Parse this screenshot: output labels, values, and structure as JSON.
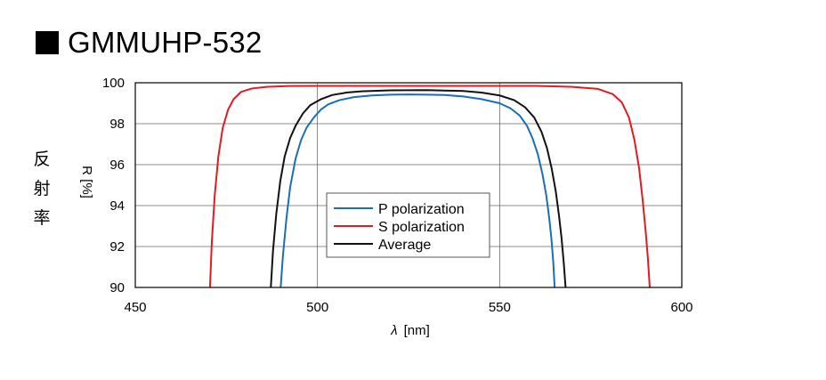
{
  "header": {
    "title": "GMMUHP-532"
  },
  "side_label": [
    "反",
    "射",
    "率"
  ],
  "chart_data": {
    "type": "line",
    "title": "GMMUHP-532",
    "xlabel_symbol": "λ",
    "xlabel_unit": "[nm]",
    "ylabel": "R [%]",
    "xlim": [
      450,
      600
    ],
    "ylim": [
      90,
      100
    ],
    "xticks": [
      450,
      500,
      550,
      600
    ],
    "yticks": [
      90,
      92,
      94,
      96,
      98,
      100
    ],
    "grid": true,
    "legend_position": "center",
    "series": [
      {
        "name": "P polarization",
        "color": "#1a6eb8",
        "x": [
          489.9,
          490.5,
          491.5,
          492.5,
          494,
          495.5,
          497,
          499,
          501,
          503,
          506,
          510,
          515,
          520,
          525,
          530,
          535,
          540,
          545,
          550,
          553,
          555.5,
          557.5,
          559,
          560.5,
          561.8,
          562.8,
          563.6,
          564.2,
          564.7,
          565.1
        ],
        "y": [
          90,
          91.5,
          93.4,
          94.9,
          96.3,
          97.2,
          97.8,
          98.3,
          98.7,
          98.95,
          99.15,
          99.3,
          99.38,
          99.42,
          99.43,
          99.42,
          99.4,
          99.33,
          99.2,
          99.0,
          98.75,
          98.4,
          97.9,
          97.3,
          96.5,
          95.5,
          94.5,
          93.4,
          92.4,
          91.3,
          90
        ]
      },
      {
        "name": "S polarization",
        "color": "#e01b22",
        "x": [
          470.5,
          471,
          471.8,
          472.8,
          474,
          475.5,
          477,
          479,
          482,
          486,
          492,
          500,
          520,
          540,
          560,
          570,
          577,
          581,
          583.5,
          585.5,
          587,
          588.3,
          589.3,
          590.1,
          590.7,
          591.2
        ],
        "y": [
          90,
          92.2,
          94.5,
          96.4,
          97.8,
          98.7,
          99.2,
          99.55,
          99.72,
          99.8,
          99.84,
          99.85,
          99.85,
          99.85,
          99.85,
          99.8,
          99.7,
          99.45,
          99.05,
          98.3,
          97.2,
          95.8,
          94.2,
          92.7,
          91.4,
          90
        ]
      },
      {
        "name": "Average",
        "color": "#111111",
        "x": [
          487.2,
          487.8,
          488.7,
          489.8,
          491,
          492.5,
          494,
          496,
          498,
          501,
          504,
          508,
          512,
          520,
          530,
          540,
          545,
          550,
          554,
          557,
          559.5,
          561.5,
          563,
          564.3,
          565.4,
          566.3,
          567,
          567.6,
          568.1
        ],
        "y": [
          90,
          91.8,
          93.6,
          95.2,
          96.4,
          97.3,
          97.9,
          98.5,
          98.9,
          99.2,
          99.4,
          99.52,
          99.58,
          99.63,
          99.64,
          99.6,
          99.52,
          99.38,
          99.15,
          98.8,
          98.3,
          97.6,
          96.8,
          95.8,
          94.7,
          93.5,
          92.4,
          91.2,
          90
        ]
      }
    ]
  },
  "legend": {
    "items": [
      "P polarization",
      "S polarization",
      "Average"
    ]
  }
}
